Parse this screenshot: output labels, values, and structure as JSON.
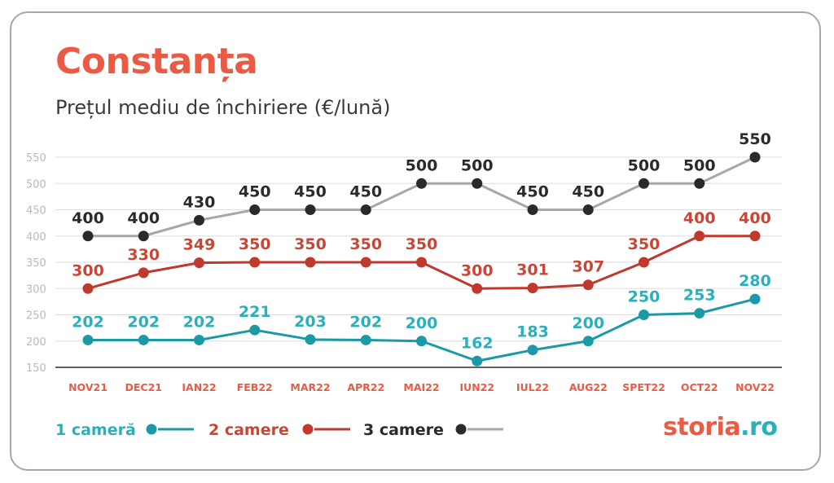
{
  "header": {
    "title": "Constanța",
    "subtitle": "Prețul mediu de închiriere (€/lună)"
  },
  "colors": {
    "title": "#ea5a44",
    "series_1": "#1b9aa6",
    "series_1_label": "#2ab0bd",
    "series_2": "#bf3a2c",
    "series_2_label": "#c94636",
    "series_3_line": "#a9a5ac",
    "series_3_marker": "#2a2a2a",
    "axis_tick": "#b9b9b9",
    "category_tick": "#ea5a44"
  },
  "chart_data": {
    "type": "line",
    "title": "Prețul mediu de închiriere (€/lună)",
    "categories": [
      "NOV21",
      "DEC21",
      "IAN22",
      "FEB22",
      "MAR22",
      "APR22",
      "MAI22",
      "IUN22",
      "IUL22",
      "AUG22",
      "SPET22",
      "OCT22",
      "NOV22"
    ],
    "y_ticks": [
      "550",
      "500",
      "450",
      "400",
      "350",
      "300",
      "250",
      "200",
      "150"
    ],
    "ylim": [
      150,
      550
    ],
    "grid": true,
    "legend_position": "bottom-left",
    "series": [
      {
        "name": "1 cameră",
        "values": [
          202,
          202,
          202,
          221,
          203,
          202,
          200,
          162,
          183,
          200,
          250,
          253,
          280
        ]
      },
      {
        "name": "2 camere",
        "values": [
          300,
          330,
          349,
          350,
          350,
          350,
          350,
          300,
          301,
          307,
          350,
          400,
          400
        ]
      },
      {
        "name": "3 camere",
        "values": [
          400,
          400,
          430,
          450,
          450,
          450,
          500,
          500,
          450,
          450,
          500,
          500,
          550
        ]
      }
    ]
  },
  "legend": {
    "items": [
      "1 cameră",
      "2 camere",
      "3 camere"
    ]
  },
  "brand": {
    "part1": "storia",
    "part2": ".ro"
  }
}
